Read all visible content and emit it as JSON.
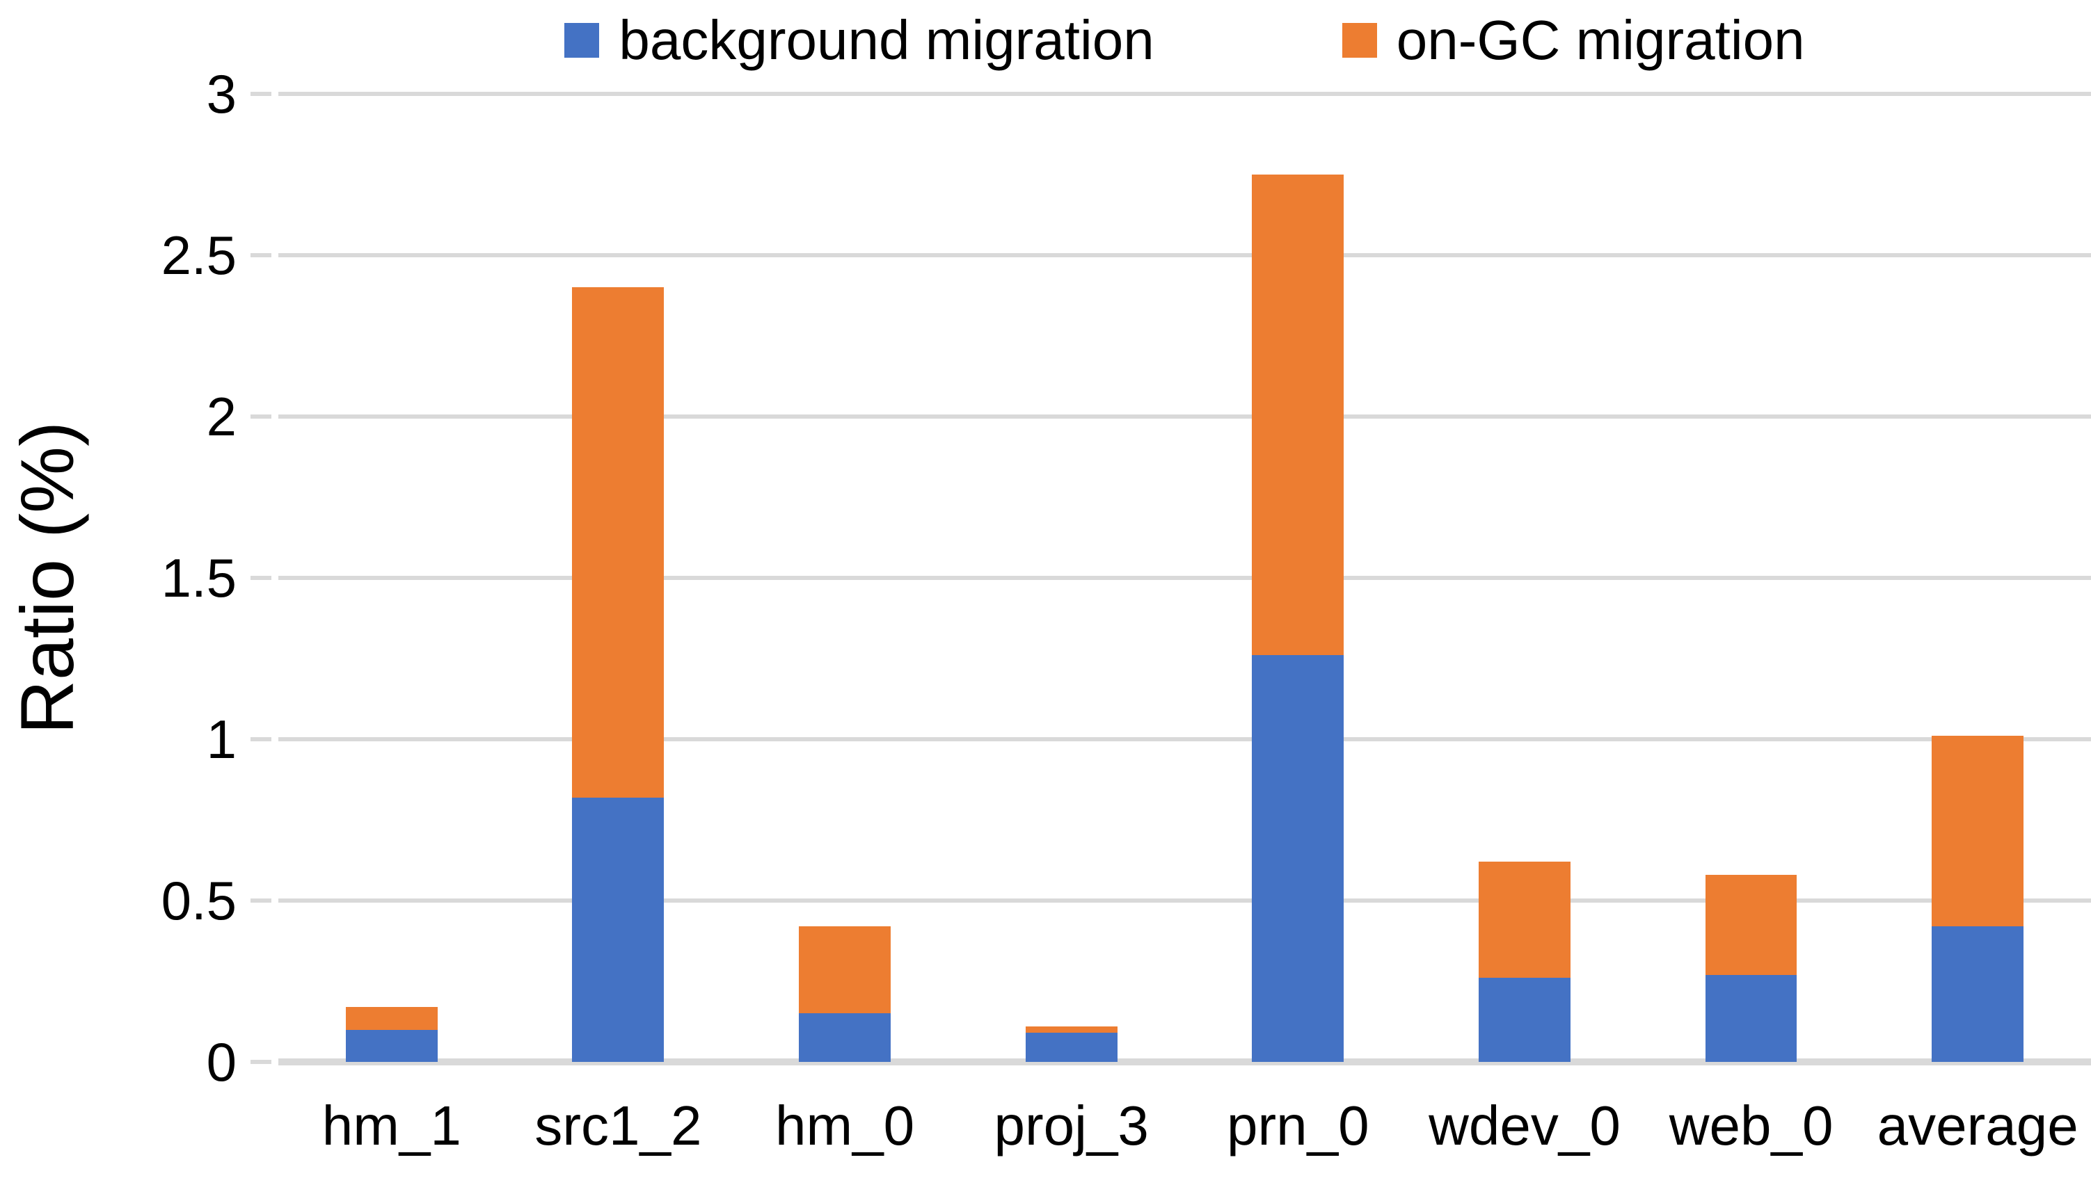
{
  "chart_data": {
    "type": "bar",
    "stacked": true,
    "title": "",
    "categories": [
      "hm_1",
      "src1_2",
      "hm_0",
      "proj_3",
      "prn_0",
      "wdev_0",
      "web_0",
      "average"
    ],
    "series": [
      {
        "name": "background migration",
        "color": "#4472C4",
        "values": [
          0.1,
          0.82,
          0.15,
          0.09,
          1.26,
          0.26,
          0.27,
          0.42
        ]
      },
      {
        "name": "on-GC migration",
        "color": "#ED7D31",
        "values": [
          0.07,
          1.58,
          0.27,
          0.02,
          1.49,
          0.36,
          0.31,
          0.59
        ]
      }
    ],
    "totals": [
      0.17,
      2.4,
      0.42,
      0.11,
      2.75,
      0.62,
      0.58,
      1.01
    ],
    "xlabel": "",
    "ylabel": "Ratio (%)",
    "ylim": [
      0,
      3
    ],
    "ytick_step": 0.5,
    "yticks": [
      {
        "label": "3",
        "value": 3.0
      },
      {
        "label": "2.5",
        "value": 2.5
      },
      {
        "label": "2",
        "value": 2.0
      },
      {
        "label": "1.5",
        "value": 1.5
      },
      {
        "label": "1",
        "value": 1.0
      },
      {
        "label": "0.5",
        "value": 0.5
      },
      {
        "label": "0",
        "value": 0.0
      }
    ],
    "grid": true,
    "grid_color": "#D9D9D9",
    "axis_line_color": "#D9D9D9",
    "text_color": "#000000",
    "legend_position": "top"
  }
}
